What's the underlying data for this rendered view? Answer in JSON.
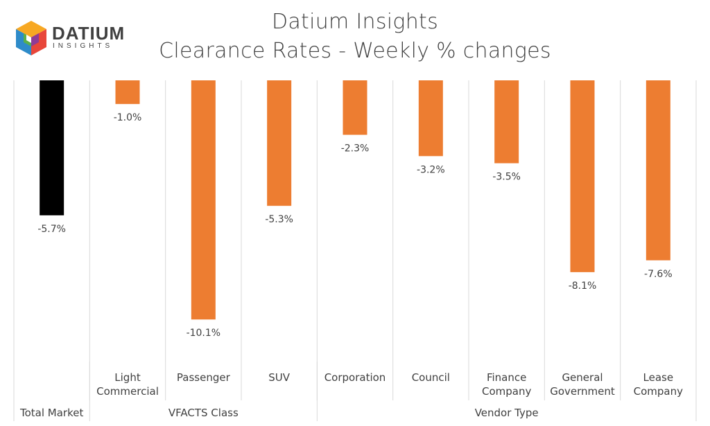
{
  "logo": {
    "word": "DATIUM",
    "sub": "INSIGHTS"
  },
  "colors": {
    "total": "#000000",
    "bar": "#ED7D31",
    "grid": "#D9D9D9",
    "text": "#404040"
  },
  "chart_data": {
    "type": "bar",
    "title": "Datium Insights",
    "subtitle": "Clearance Rates - Weekly % changes",
    "categories": [
      "Total Market",
      "Light Commercial",
      "Passenger",
      "SUV",
      "Corporation",
      "Council",
      "Finance Company",
      "General Government",
      "Lease Company"
    ],
    "category_lines": [
      [
        "Total Market"
      ],
      [
        "Light",
        "Commercial"
      ],
      [
        "Passenger"
      ],
      [
        "SUV"
      ],
      [
        "Corporation"
      ],
      [
        "Council"
      ],
      [
        "Finance",
        "Company"
      ],
      [
        "General",
        "Government"
      ],
      [
        "Lease",
        "Company"
      ]
    ],
    "values": [
      -5.7,
      -1.0,
      -10.1,
      -5.3,
      -2.3,
      -3.2,
      -3.5,
      -8.1,
      -7.6
    ],
    "data_labels": [
      "-5.7%",
      "-1.0%",
      "-10.1%",
      "-5.3%",
      "-2.3%",
      "-3.2%",
      "-3.5%",
      "-8.1%",
      "-7.6%"
    ],
    "groups": [
      {
        "label": "",
        "start": 0,
        "end": 0
      },
      {
        "label": "VFACTS Class",
        "start": 1,
        "end": 3
      },
      {
        "label": "Vendor Type",
        "start": 4,
        "end": 8
      }
    ],
    "bar_colors": [
      "#000000",
      "#ED7D31",
      "#ED7D31",
      "#ED7D31",
      "#ED7D31",
      "#ED7D31",
      "#ED7D31",
      "#ED7D31",
      "#ED7D31"
    ],
    "ylim": [
      -11,
      0
    ],
    "grid": true,
    "legend": "none"
  }
}
